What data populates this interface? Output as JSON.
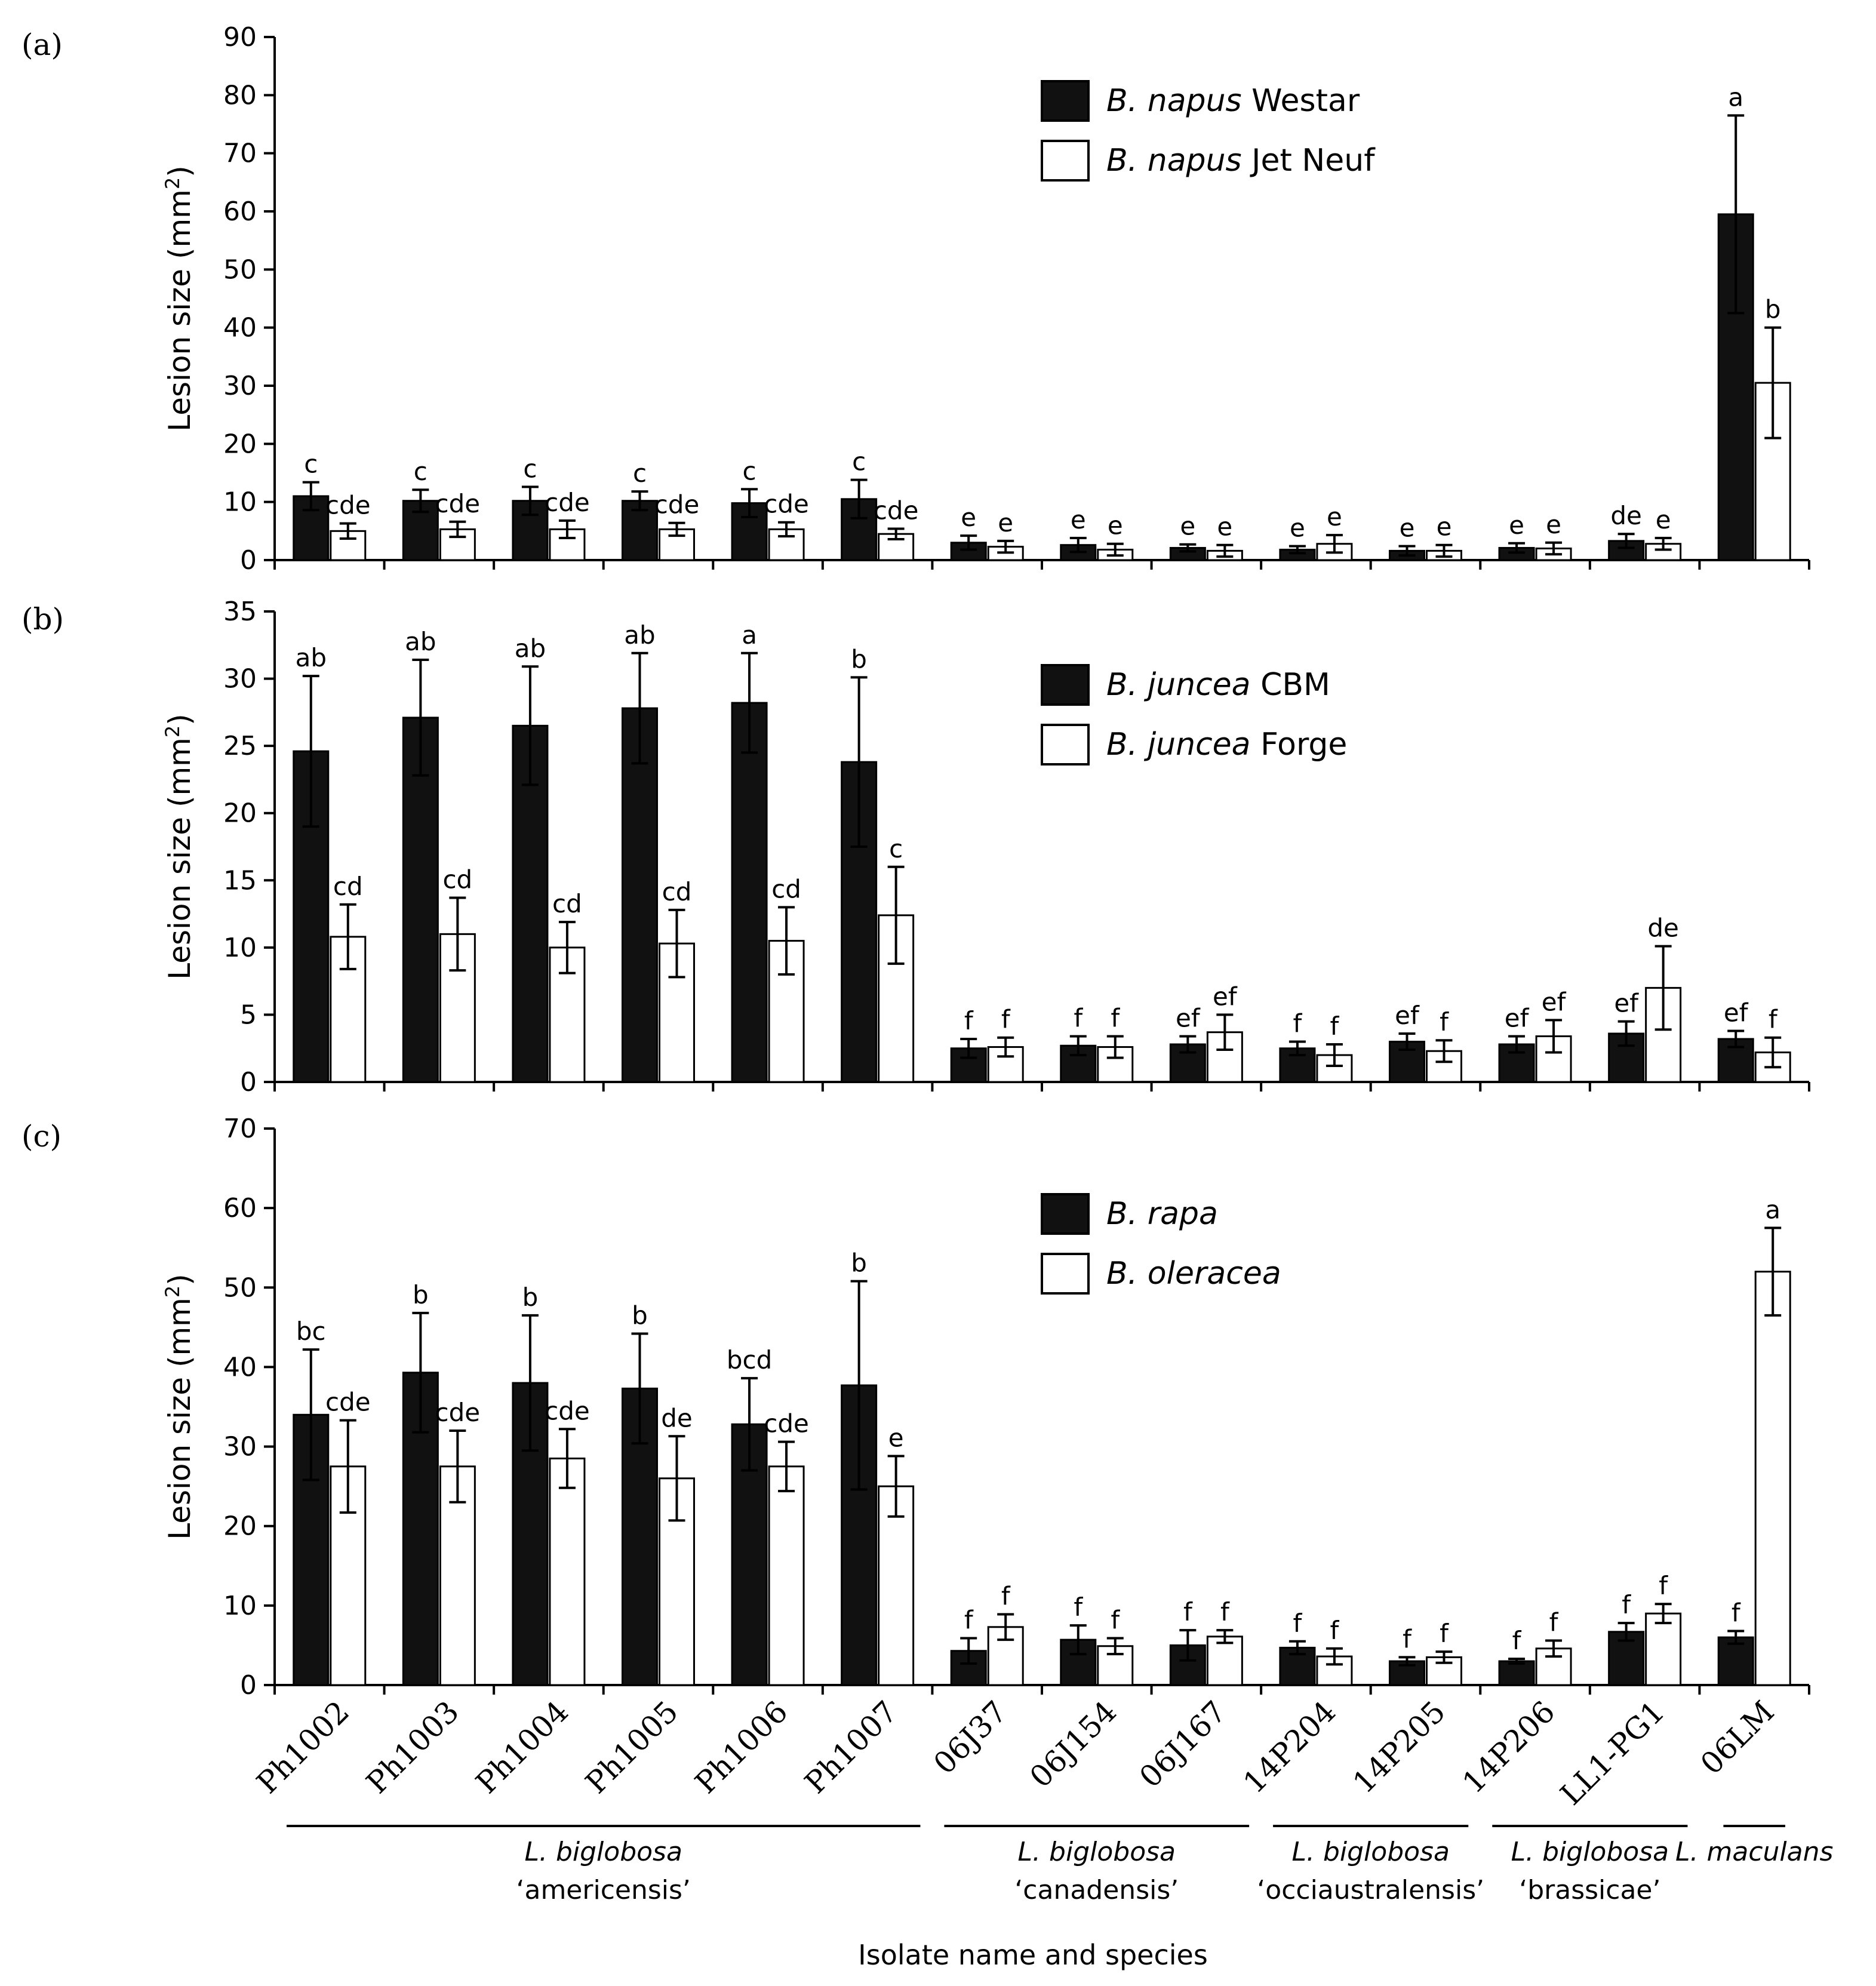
{
  "chart_data": [
    {
      "panel_label": "(a)",
      "type": "bar",
      "ylabel": "Lesion size (mm",
      "ylabel_sup": "2",
      "ylabel_close": ")",
      "ylim": [
        0,
        90
      ],
      "yticks": [
        0,
        10,
        20,
        30,
        40,
        50,
        60,
        70,
        80,
        90
      ],
      "categories": [
        "Ph1002",
        "Ph1003",
        "Ph1004",
        "Ph1005",
        "Ph1006",
        "Ph1007",
        "06J37",
        "06J154",
        "06J167",
        "14P204",
        "14P205",
        "14P206",
        "LL1-PG1",
        "06LM"
      ],
      "series": [
        {
          "name_italic": "B. napus",
          "name_rest": " Westar",
          "color": "#111111",
          "values": [
            11,
            10.2,
            10.2,
            10.2,
            9.8,
            10.5,
            3,
            2.6,
            2.1,
            1.8,
            1.6,
            2.1,
            3.3,
            59.5
          ],
          "errors": [
            2.4,
            1.9,
            2.4,
            1.6,
            2.4,
            3.3,
            1.2,
            1.2,
            0.6,
            0.6,
            0.8,
            0.8,
            1.2,
            17
          ],
          "labels": [
            "c",
            "c",
            "c",
            "c",
            "c",
            "c",
            "e",
            "e",
            "e",
            "e",
            "e",
            "e",
            "de",
            "a"
          ]
        },
        {
          "name_italic": "B. napus",
          "name_rest": " Jet Neuf",
          "color": "#ffffff",
          "values": [
            5,
            5.3,
            5.3,
            5.3,
            5.3,
            4.5,
            2.3,
            1.8,
            1.6,
            2.8,
            1.6,
            2,
            2.8,
            30.5
          ],
          "errors": [
            1.3,
            1.3,
            1.5,
            1.1,
            1.2,
            0.9,
            1,
            1,
            1,
            1.5,
            1,
            1,
            1,
            9.5
          ],
          "labels": [
            "cde",
            "cde",
            "cde",
            "cde",
            "cde",
            "cde",
            "e",
            "e",
            "e",
            "e",
            "e",
            "e",
            "e",
            "b"
          ]
        }
      ]
    },
    {
      "panel_label": "(b)",
      "type": "bar",
      "ylabel": "Lesion size (mm",
      "ylabel_sup": "2",
      "ylabel_close": ")",
      "ylim": [
        0,
        35
      ],
      "yticks": [
        0,
        5,
        10,
        15,
        20,
        25,
        30,
        35
      ],
      "categories": [
        "Ph1002",
        "Ph1003",
        "Ph1004",
        "Ph1005",
        "Ph1006",
        "Ph1007",
        "06J37",
        "06J154",
        "06J167",
        "14P204",
        "14P205",
        "14P206",
        "LL1-PG1",
        "06LM"
      ],
      "series": [
        {
          "name_italic": "B. juncea",
          "name_rest": " CBM",
          "color": "#111111",
          "values": [
            24.6,
            27.1,
            26.5,
            27.8,
            28.2,
            23.8,
            2.5,
            2.7,
            2.8,
            2.5,
            3,
            2.8,
            3.6,
            3.2
          ],
          "errors": [
            5.6,
            4.3,
            4.4,
            4.1,
            3.7,
            6.3,
            0.7,
            0.7,
            0.6,
            0.5,
            0.6,
            0.6,
            0.9,
            0.6
          ],
          "labels": [
            "ab",
            "ab",
            "ab",
            "ab",
            "a",
            "b",
            "f",
            "f",
            "ef",
            "f",
            "ef",
            "ef",
            "ef",
            "ef"
          ]
        },
        {
          "name_italic": "B. juncea",
          "name_rest": " Forge",
          "color": "#ffffff",
          "values": [
            10.8,
            11,
            10,
            10.3,
            10.5,
            12.4,
            2.6,
            2.6,
            3.7,
            2,
            2.3,
            3.4,
            7,
            2.2
          ],
          "errors": [
            2.4,
            2.7,
            1.9,
            2.5,
            2.5,
            3.6,
            0.7,
            0.8,
            1.3,
            0.8,
            0.8,
            1.2,
            3.1,
            1.1
          ],
          "labels": [
            "cd",
            "cd",
            "cd",
            "cd",
            "cd",
            "c",
            "f",
            "f",
            "ef",
            "f",
            "f",
            "ef",
            "de",
            "f"
          ]
        }
      ]
    },
    {
      "panel_label": "(c)",
      "type": "bar",
      "ylabel": "Lesion size (mm",
      "ylabel_sup": "2",
      "ylabel_close": ")",
      "ylim": [
        0,
        70
      ],
      "yticks": [
        0,
        10,
        20,
        30,
        40,
        50,
        60,
        70
      ],
      "categories": [
        "Ph1002",
        "Ph1003",
        "Ph1004",
        "Ph1005",
        "Ph1006",
        "Ph1007",
        "06J37",
        "06J154",
        "06J167",
        "14P204",
        "14P205",
        "14P206",
        "LL1-PG1",
        "06LM"
      ],
      "series": [
        {
          "name_italic": "B. rapa",
          "name_rest": "",
          "color": "#111111",
          "values": [
            34,
            39.3,
            38,
            37.3,
            32.8,
            37.7,
            4.3,
            5.7,
            5,
            4.7,
            3,
            3,
            6.7,
            6
          ],
          "errors": [
            8.2,
            7.5,
            8.5,
            6.9,
            5.8,
            13.1,
            1.6,
            1.8,
            1.9,
            0.8,
            0.5,
            0.3,
            1.1,
            0.8
          ],
          "labels": [
            "bc",
            "b",
            "b",
            "b",
            "bcd",
            "b",
            "f",
            "f",
            "f",
            "f",
            "f",
            "f",
            "f",
            "f"
          ]
        },
        {
          "name_italic": "B. oleracea",
          "name_rest": "",
          "color": "#ffffff",
          "values": [
            27.5,
            27.5,
            28.5,
            26,
            27.5,
            25,
            7.3,
            4.9,
            6.1,
            3.6,
            3.5,
            4.6,
            9,
            52
          ],
          "errors": [
            5.8,
            4.5,
            3.7,
            5.3,
            3.1,
            3.8,
            1.6,
            1,
            0.8,
            1,
            0.7,
            1,
            1.2,
            5.5
          ],
          "labels": [
            "cde",
            "cde",
            "cde",
            "de",
            "cde",
            "e",
            "f",
            "f",
            "f",
            "f",
            "f",
            "f",
            "f",
            "a"
          ]
        }
      ]
    }
  ],
  "groups": [
    {
      "line1": "L. biglobosa",
      "line2": "‘americensis’",
      "from": 0,
      "to": 5
    },
    {
      "line1": "L. biglobosa",
      "line2": "‘canadensis’",
      "from": 6,
      "to": 8
    },
    {
      "line1": "L. biglobosa",
      "line2": "‘occiaustralensis’",
      "from": 9,
      "to": 10
    },
    {
      "line1": "L. biglobosa",
      "line2": "‘brassicae’",
      "from": 11,
      "to": 12
    },
    {
      "line1": "L. maculans",
      "line2": "",
      "from": 13,
      "to": 13
    }
  ],
  "xtitle": "Isolate name and species"
}
